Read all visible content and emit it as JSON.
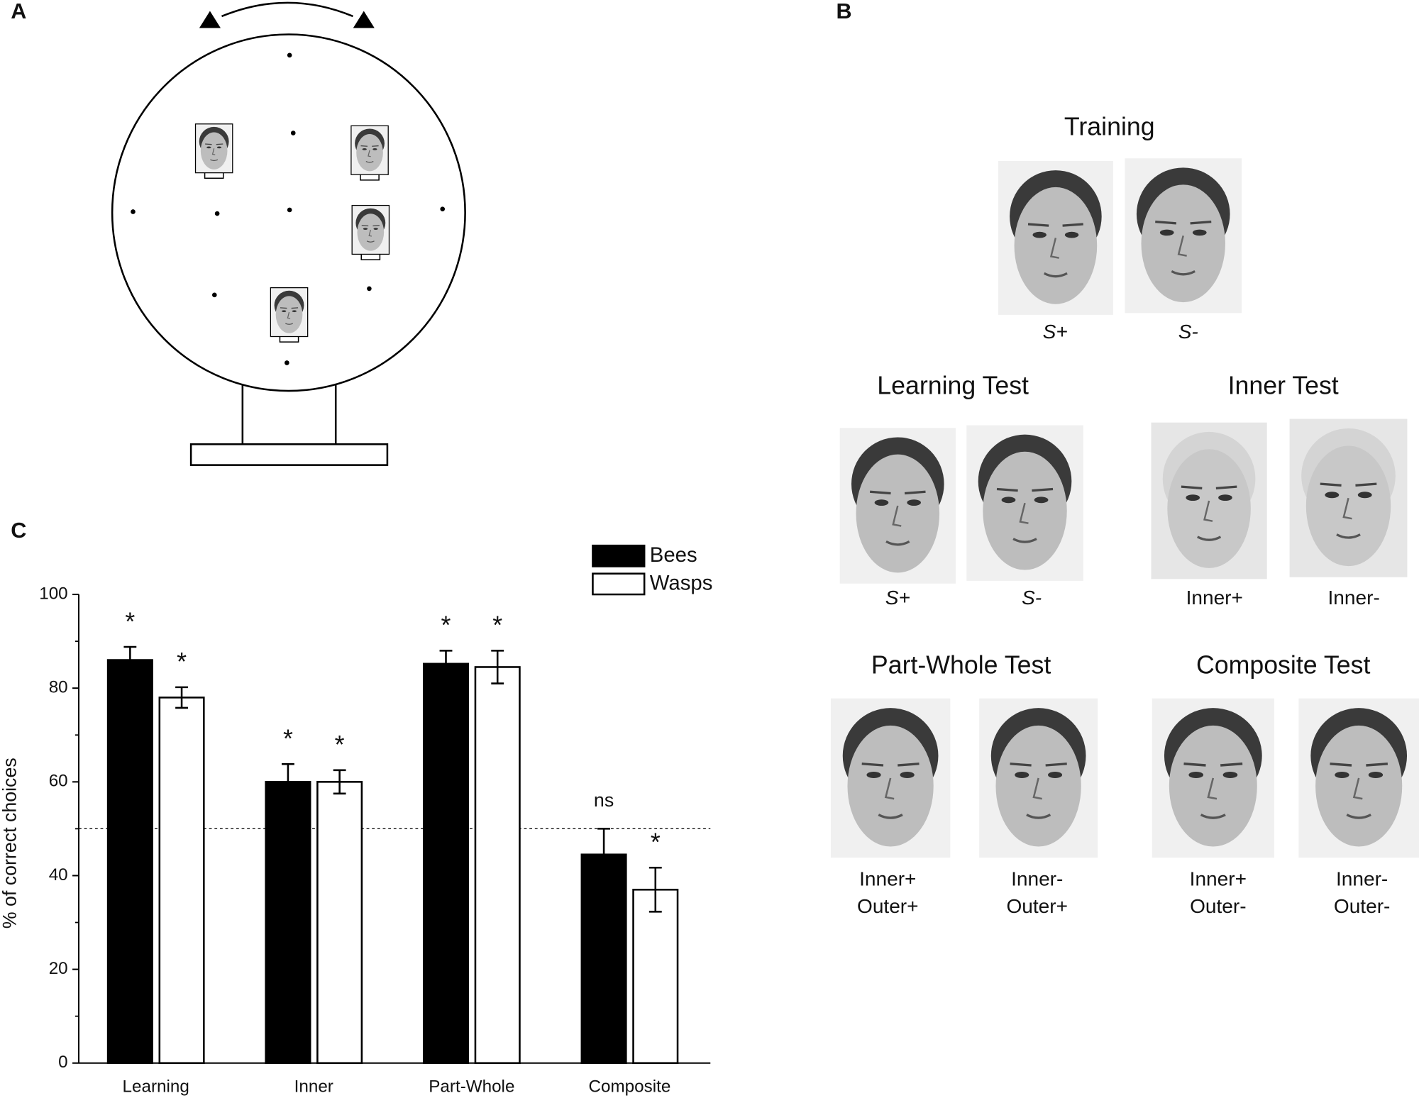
{
  "panel_labels": [
    "A",
    "B",
    "C"
  ],
  "panel_b": {
    "sections": [
      {
        "title": "Training",
        "labels": [
          [
            "S+"
          ],
          [
            "S-"
          ]
        ]
      },
      {
        "title": "Learning Test",
        "labels": [
          [
            "S+"
          ],
          [
            "S-"
          ]
        ]
      },
      {
        "title": "Inner Test",
        "labels": [
          [
            "Inner+"
          ],
          [
            "Inner-"
          ]
        ]
      },
      {
        "title": "Part-Whole Test",
        "labels": [
          [
            "Inner+",
            "Outer+"
          ],
          [
            "Inner-",
            "Outer+"
          ]
        ]
      },
      {
        "title": "Composite Test",
        "labels": [
          [
            "Inner+",
            "Outer-"
          ],
          [
            "Inner-",
            "Outer-"
          ]
        ]
      }
    ]
  },
  "chart_data": {
    "type": "bar",
    "ylabel": "% of correct choices",
    "categories": [
      "Learning",
      "Inner",
      "Part-Whole",
      "Composite"
    ],
    "series": [
      {
        "name": "Bees",
        "color": "#000000",
        "values": [
          86,
          60,
          85.2,
          44.5
        ],
        "errors": [
          2.8,
          3.8,
          2.8,
          5.5
        ],
        "annotations": [
          "*",
          "*",
          "*",
          "ns"
        ]
      },
      {
        "name": "Wasps",
        "color": "#ffffff",
        "values": [
          78,
          60,
          84.5,
          37
        ],
        "errors": [
          2.2,
          2.5,
          3.5,
          4.7
        ],
        "annotations": [
          "*",
          "*",
          "*",
          "*"
        ]
      }
    ],
    "ylim": [
      0,
      100
    ],
    "yticks": [
      0,
      20,
      40,
      60,
      80,
      100
    ],
    "minor_yticks": [
      10,
      30,
      50,
      70,
      90
    ],
    "reference_line": 50,
    "legend": "upper right"
  }
}
